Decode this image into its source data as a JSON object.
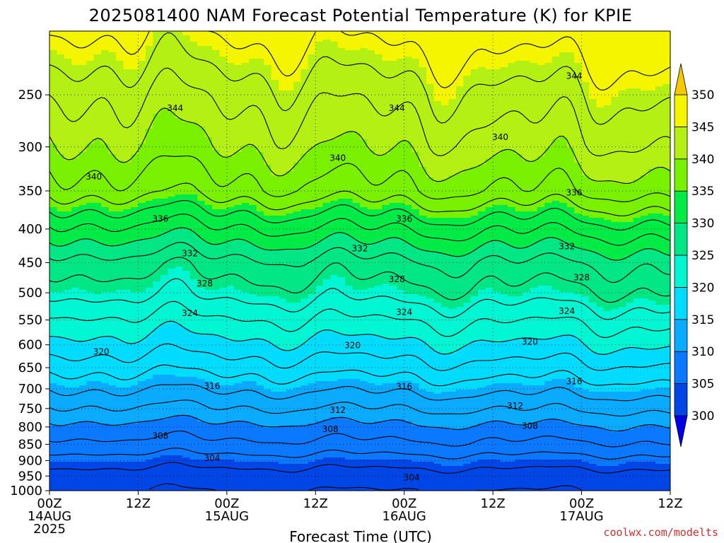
{
  "chart_data": {
    "type": "heatmap",
    "title": "2025081400 NAM Forecast Potential Temperature (K) for KPIE",
    "xlabel": "Forecast Time (UTC)",
    "ylabel": "",
    "y_scale": "log-pressure",
    "ylim": [
      1000,
      200
    ],
    "y_ticks": [
      250,
      300,
      350,
      400,
      450,
      500,
      550,
      600,
      650,
      700,
      750,
      800,
      850,
      900,
      950,
      1000
    ],
    "x_range_hours": [
      0,
      84
    ],
    "x_ticks": [
      {
        "hour": 0,
        "label": "00Z",
        "date": "14AUG",
        "year": "2025"
      },
      {
        "hour": 12,
        "label": "12Z",
        "date": "",
        "year": ""
      },
      {
        "hour": 24,
        "label": "00Z",
        "date": "15AUG",
        "year": ""
      },
      {
        "hour": 36,
        "label": "12Z",
        "date": "",
        "year": ""
      },
      {
        "hour": 48,
        "label": "00Z",
        "date": "16AUG",
        "year": ""
      },
      {
        "hour": 60,
        "label": "12Z",
        "date": "",
        "year": ""
      },
      {
        "hour": 72,
        "label": "00Z",
        "date": "17AUG",
        "year": ""
      },
      {
        "hour": 84,
        "label": "12Z",
        "date": "",
        "year": ""
      }
    ],
    "grid": true,
    "colorbar": {
      "placement": "right",
      "levels": [
        300,
        305,
        310,
        315,
        320,
        325,
        330,
        335,
        340,
        345,
        350
      ],
      "colors": [
        "#0000e6",
        "#0046e6",
        "#0a78ff",
        "#0aaaff",
        "#00dcff",
        "#00f5d2",
        "#00e685",
        "#00eb46",
        "#78f000",
        "#b4f014",
        "#f5f500",
        "#f5c800"
      ]
    },
    "surface_color": "#a0522d",
    "profile": [
      {
        "pressure": 1000,
        "theta": 302
      },
      {
        "pressure": 950,
        "theta": 303
      },
      {
        "pressure": 900,
        "theta": 305
      },
      {
        "pressure": 850,
        "theta": 307.5
      },
      {
        "pressure": 800,
        "theta": 309.5
      },
      {
        "pressure": 750,
        "theta": 312
      },
      {
        "pressure": 700,
        "theta": 314.5
      },
      {
        "pressure": 650,
        "theta": 317
      },
      {
        "pressure": 600,
        "theta": 319.5
      },
      {
        "pressure": 550,
        "theta": 322
      },
      {
        "pressure": 500,
        "theta": 325
      },
      {
        "pressure": 450,
        "theta": 327.5
      },
      {
        "pressure": 400,
        "theta": 332
      },
      {
        "pressure": 350,
        "theta": 337.5
      },
      {
        "pressure": 300,
        "theta": 340.5
      },
      {
        "pressure": 250,
        "theta": 343
      },
      {
        "pressure": 200,
        "theta": 347
      }
    ],
    "contour_levels": [
      302,
      304,
      306,
      308,
      310,
      312,
      314,
      316,
      318,
      320,
      322,
      324,
      326,
      328,
      330,
      332,
      334,
      336,
      338,
      340,
      342,
      344,
      346
    ],
    "contour_labels": [
      {
        "value": "344",
        "hour": 17,
        "pressure": 262
      },
      {
        "value": "344",
        "hour": 47,
        "pressure": 262
      },
      {
        "value": "344",
        "hour": 71,
        "pressure": 234
      },
      {
        "value": "340",
        "hour": 6,
        "pressure": 333
      },
      {
        "value": "340",
        "hour": 39,
        "pressure": 312
      },
      {
        "value": "340",
        "hour": 61,
        "pressure": 290
      },
      {
        "value": "336",
        "hour": 15,
        "pressure": 386
      },
      {
        "value": "336",
        "hour": 48,
        "pressure": 386
      },
      {
        "value": "336",
        "hour": 71,
        "pressure": 352
      },
      {
        "value": "332",
        "hour": 19,
        "pressure": 436
      },
      {
        "value": "332",
        "hour": 42,
        "pressure": 428
      },
      {
        "value": "332",
        "hour": 70,
        "pressure": 425
      },
      {
        "value": "328",
        "hour": 21,
        "pressure": 484
      },
      {
        "value": "328",
        "hour": 47,
        "pressure": 477
      },
      {
        "value": "328",
        "hour": 72,
        "pressure": 474
      },
      {
        "value": "324",
        "hour": 19,
        "pressure": 537
      },
      {
        "value": "324",
        "hour": 48,
        "pressure": 535
      },
      {
        "value": "324",
        "hour": 70,
        "pressure": 533
      },
      {
        "value": "320",
        "hour": 7,
        "pressure": 615
      },
      {
        "value": "320",
        "hour": 41,
        "pressure": 601
      },
      {
        "value": "320",
        "hour": 65,
        "pressure": 594
      },
      {
        "value": "316",
        "hour": 22,
        "pressure": 693
      },
      {
        "value": "316",
        "hour": 48,
        "pressure": 695
      },
      {
        "value": "316",
        "hour": 71,
        "pressure": 682
      },
      {
        "value": "312",
        "hour": 39,
        "pressure": 754
      },
      {
        "value": "312",
        "hour": 63,
        "pressure": 743
      },
      {
        "value": "308",
        "hour": 15,
        "pressure": 825
      },
      {
        "value": "308",
        "hour": 38,
        "pressure": 806
      },
      {
        "value": "308",
        "hour": 65,
        "pressure": 797
      },
      {
        "value": "304",
        "hour": 22,
        "pressure": 892
      },
      {
        "value": "304",
        "hour": 49,
        "pressure": 955
      }
    ]
  },
  "credit": "coolwx.com/modelts"
}
